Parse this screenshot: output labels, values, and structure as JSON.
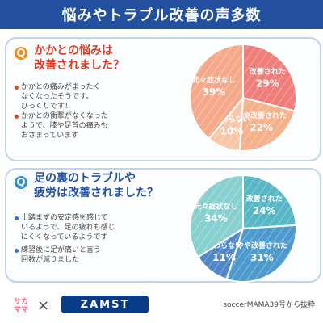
{
  "header": {
    "title": "悩みやトラブル改善の声多数"
  },
  "sections": [
    {
      "badge": "Q",
      "question_lines": [
        "かかとの悩みは",
        "改善されました？"
      ],
      "comments": [
        {
          "lines": [
            "かかとの痛みがまったく",
            "なくなったそうです。",
            "びっくりです！"
          ]
        },
        {
          "lines": [
            "かかとの衝撃がなくなった",
            "ようで、膝や足首の痛みも",
            "おさまっています"
          ]
        }
      ]
    },
    {
      "badge": "Q",
      "question_lines": [
        "足の裏のトラブルや",
        "疲労は改善されました？"
      ],
      "comments": [
        {
          "lines": [
            "土踏まずの安定感を感じて",
            "いるようで、足の疲れも感じ",
            "にくくなっているようです"
          ]
        },
        {
          "lines": [
            "練習後に足が痛いと言う",
            "回数が減りました"
          ]
        }
      ]
    }
  ],
  "chart_data": [
    {
      "type": "pie",
      "title": "",
      "slices": [
        {
          "label": "改善された",
          "value": 29,
          "display": "29%",
          "color": "#ef7d7a"
        },
        {
          "label": "やや改善された",
          "value": 22,
          "display": "22%",
          "color": "#f4b18b"
        },
        {
          "label": "変わらない",
          "value": 10,
          "display": "10%",
          "color": "#f7c6a5"
        },
        {
          "label": "元々症状なし",
          "value": 39,
          "display": "39%",
          "color": "#f6a98a"
        }
      ]
    },
    {
      "type": "pie",
      "title": "",
      "slices": [
        {
          "label": "改善された",
          "value": 24,
          "display": "24%",
          "color": "#57b7c4"
        },
        {
          "label": "やや改善された",
          "value": 31,
          "display": "31%",
          "color": "#4d9acd"
        },
        {
          "label": "変わらない",
          "value": 11,
          "display": "11%",
          "color": "#4e86c6"
        },
        {
          "label": "元々症状なし",
          "value": 34,
          "display": "34%",
          "color": "#87d0cf"
        }
      ]
    }
  ],
  "footer": {
    "brand1_lines": [
      "サカ",
      "ママ"
    ],
    "cross": "×",
    "brand2": "ZAMST",
    "source": "soccerMAMA39号から抜粋"
  }
}
